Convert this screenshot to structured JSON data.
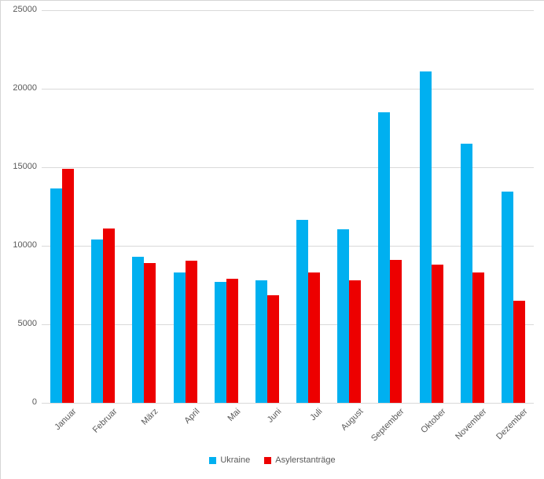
{
  "chart_data": {
    "type": "bar",
    "title": "",
    "categories": [
      "Januar",
      "Februar",
      "März",
      "April",
      "Mai",
      "Juni",
      "Juli",
      "August",
      "September",
      "Oktober",
      "November",
      "Dezember"
    ],
    "series": [
      {
        "name": "Ukraine",
        "color": "#00b0f0",
        "values": [
          13650,
          10400,
          9300,
          8300,
          7700,
          7800,
          11650,
          11050,
          18500,
          21100,
          16500,
          13450
        ]
      },
      {
        "name": "Asylerstanträge",
        "color": "#ed0000",
        "values": [
          14900,
          11100,
          8900,
          9050,
          7900,
          6850,
          8300,
          7800,
          9100,
          8800,
          8300,
          6500
        ]
      }
    ],
    "xlabel": "",
    "ylabel": "",
    "ylim": [
      0,
      25000
    ],
    "y_ticks": [
      0,
      5000,
      10000,
      15000,
      20000,
      25000
    ],
    "y_tick_labels": [
      "0",
      "5000",
      "10000",
      "15000",
      "20000",
      "25000"
    ],
    "grid": "horizontal",
    "gridline_color": "#d9d9d9",
    "axis_text_color": "#595959",
    "legend_position": "bottom"
  }
}
